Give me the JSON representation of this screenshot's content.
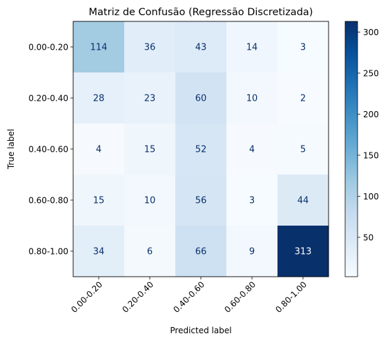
{
  "chart_data": {
    "type": "heatmap",
    "title": "Matriz de Confusão (Regressão Discretizada)",
    "xlabel": "Predicted label",
    "ylabel": "True label",
    "x_categories": [
      "0.00-0.20",
      "0.20-0.40",
      "0.40-0.60",
      "0.60-0.80",
      "0.80-1.00"
    ],
    "y_categories": [
      "0.00-0.20",
      "0.20-0.40",
      "0.40-0.60",
      "0.60-0.80",
      "0.80-1.00"
    ],
    "values": [
      [
        114,
        36,
        43,
        14,
        3
      ],
      [
        28,
        23,
        60,
        10,
        2
      ],
      [
        4,
        15,
        52,
        4,
        5
      ],
      [
        15,
        10,
        56,
        3,
        44
      ],
      [
        34,
        6,
        66,
        9,
        313
      ]
    ],
    "colormap": "Blues",
    "color_range": [
      2,
      313
    ],
    "colorbar_ticks": [
      50,
      100,
      150,
      200,
      250,
      300
    ],
    "colors": {
      "light_text": "#ffffff",
      "dark_text": "#08306b"
    }
  }
}
